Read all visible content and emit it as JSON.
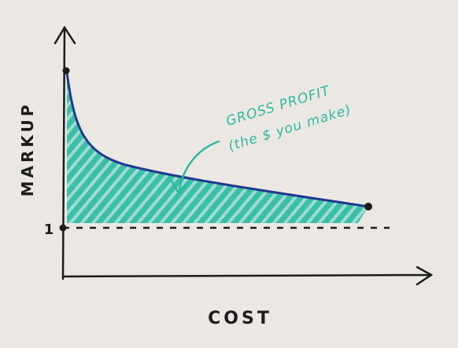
{
  "axes": {
    "y_label": "MARKUP",
    "x_label": "COST",
    "y_tick": "1"
  },
  "annotation": {
    "title": "GROSS PROFIT",
    "subtitle": "(the $ you make)"
  }
}
